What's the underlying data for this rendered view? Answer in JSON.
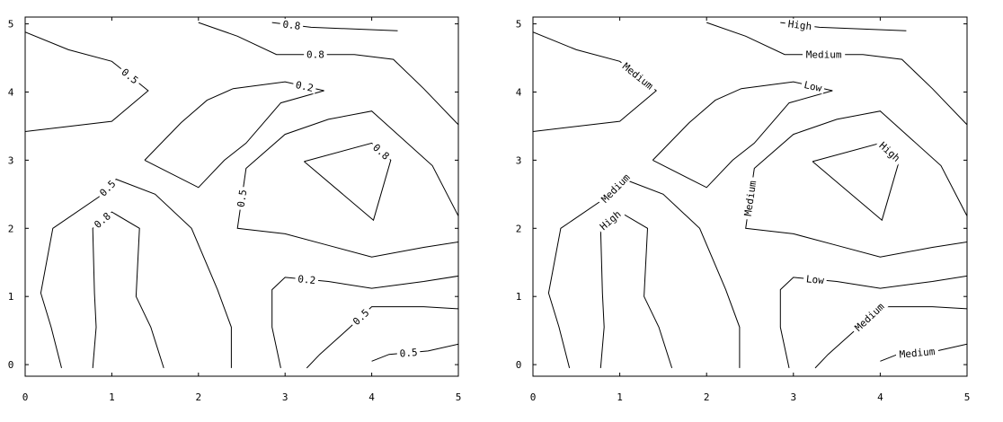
{
  "chart_data": [
    {
      "type": "contour",
      "xlim": [
        0,
        5
      ],
      "ylim": [
        0,
        5
      ],
      "x_ticks": [
        "0",
        "1",
        "2",
        "3",
        "4",
        "5"
      ],
      "y_ticks": [
        "0",
        "1",
        "2",
        "3",
        "4",
        "5"
      ],
      "contours": [
        {
          "level": "0.5",
          "points": [
            [
              0,
              4.88
            ],
            [
              0.5,
              4.62
            ],
            [
              1.0,
              4.45
            ],
            [
              1.42,
              4.02
            ],
            [
              1.0,
              3.57
            ],
            [
              0,
              3.42
            ]
          ]
        },
        {
          "level": "0.8",
          "points": [
            [
              2.85,
              5.02
            ],
            [
              3.3,
              4.95
            ],
            [
              4.3,
              4.9
            ]
          ]
        },
        {
          "level": "0.8",
          "points": [
            [
              2.0,
              5.02
            ],
            [
              2.45,
              4.82
            ],
            [
              2.9,
              4.55
            ],
            [
              3.8,
              4.55
            ],
            [
              4.25,
              4.48
            ],
            [
              4.6,
              4.05
            ],
            [
              5.0,
              3.52
            ]
          ]
        },
        {
          "level": "0.2",
          "points": [
            [
              1.38,
              3.0
            ],
            [
              1.8,
              3.55
            ],
            [
              2.1,
              3.88
            ],
            [
              2.4,
              4.05
            ],
            [
              3.0,
              4.15
            ],
            [
              3.45,
              4.02
            ],
            [
              2.95,
              3.84
            ],
            [
              2.55,
              3.25
            ],
            [
              2.3,
              3.0
            ],
            [
              2.0,
              2.6
            ],
            [
              1.38,
              3.0
            ]
          ]
        },
        {
          "level": "0.5",
          "points": [
            [
              5.0,
              2.18
            ],
            [
              4.7,
              2.92
            ],
            [
              4.0,
              3.72
            ],
            [
              3.5,
              3.6
            ],
            [
              3.0,
              3.38
            ],
            [
              2.55,
              2.88
            ],
            [
              2.45,
              2.0
            ],
            [
              3.0,
              1.92
            ],
            [
              3.5,
              1.75
            ],
            [
              4.0,
              1.58
            ],
            [
              4.6,
              1.72
            ],
            [
              5.0,
              1.8
            ]
          ]
        },
        {
          "level": "0.8",
          "points": [
            [
              3.22,
              2.98
            ],
            [
              4.0,
              3.25
            ],
            [
              4.22,
              3.0
            ],
            [
              4.02,
              2.12
            ],
            [
              3.22,
              2.98
            ]
          ]
        },
        {
          "level": "0.5",
          "points": [
            [
              0.42,
              -0.05
            ],
            [
              0.3,
              0.55
            ],
            [
              0.18,
              1.05
            ],
            [
              0.32,
              2.0
            ],
            [
              0.85,
              2.46
            ],
            [
              1.05,
              2.72
            ],
            [
              1.5,
              2.5
            ],
            [
              1.92,
              2.0
            ],
            [
              2.22,
              1.1
            ],
            [
              2.38,
              0.55
            ],
            [
              2.38,
              -0.05
            ]
          ]
        },
        {
          "level": "0.8",
          "points": [
            [
              0.78,
              -0.05
            ],
            [
              0.82,
              0.55
            ],
            [
              0.8,
              1.05
            ],
            [
              0.78,
              2.0
            ],
            [
              1.0,
              2.24
            ],
            [
              1.32,
              2.0
            ],
            [
              1.28,
              1.0
            ],
            [
              1.45,
              0.55
            ],
            [
              1.6,
              -0.05
            ]
          ]
        },
        {
          "level": "0.2",
          "points": [
            [
              5.0,
              1.3
            ],
            [
              4.6,
              1.22
            ],
            [
              4.0,
              1.12
            ],
            [
              3.5,
              1.22
            ],
            [
              3.0,
              1.28
            ],
            [
              2.85,
              1.1
            ],
            [
              2.85,
              0.55
            ],
            [
              2.95,
              -0.05
            ]
          ]
        },
        {
          "level": "0.5",
          "points": [
            [
              5.0,
              0.82
            ],
            [
              4.6,
              0.85
            ],
            [
              4.0,
              0.85
            ],
            [
              3.75,
              0.55
            ],
            [
              3.4,
              0.15
            ],
            [
              3.25,
              -0.05
            ]
          ]
        },
        {
          "level": "0.5",
          "points": [
            [
              4.0,
              0.05
            ],
            [
              4.2,
              0.15
            ],
            [
              4.65,
              0.2
            ],
            [
              5.0,
              0.3
            ]
          ]
        }
      ]
    },
    {
      "type": "contour",
      "xlim": [
        0,
        5
      ],
      "ylim": [
        0,
        5
      ],
      "x_ticks": [
        "0",
        "1",
        "2",
        "3",
        "4",
        "5"
      ],
      "y_ticks": [
        "0",
        "1",
        "2",
        "3",
        "4",
        "5"
      ],
      "contours": [
        {
          "level": "Medium",
          "points": [
            [
              0,
              4.88
            ],
            [
              0.5,
              4.62
            ],
            [
              1.0,
              4.45
            ],
            [
              1.42,
              4.02
            ],
            [
              1.0,
              3.57
            ],
            [
              0,
              3.42
            ]
          ]
        },
        {
          "level": "High",
          "points": [
            [
              2.85,
              5.02
            ],
            [
              3.3,
              4.95
            ],
            [
              4.3,
              4.9
            ]
          ]
        },
        {
          "level": "Medium",
          "points": [
            [
              2.0,
              5.02
            ],
            [
              2.45,
              4.82
            ],
            [
              2.9,
              4.55
            ],
            [
              3.8,
              4.55
            ],
            [
              4.25,
              4.48
            ],
            [
              4.6,
              4.05
            ],
            [
              5.0,
              3.52
            ]
          ]
        },
        {
          "level": "Low",
          "points": [
            [
              1.38,
              3.0
            ],
            [
              1.8,
              3.55
            ],
            [
              2.1,
              3.88
            ],
            [
              2.4,
              4.05
            ],
            [
              3.0,
              4.15
            ],
            [
              3.45,
              4.02
            ],
            [
              2.95,
              3.84
            ],
            [
              2.55,
              3.25
            ],
            [
              2.3,
              3.0
            ],
            [
              2.0,
              2.6
            ],
            [
              1.38,
              3.0
            ]
          ]
        },
        {
          "level": "Medium",
          "points": [
            [
              5.0,
              2.18
            ],
            [
              4.7,
              2.92
            ],
            [
              4.0,
              3.72
            ],
            [
              3.5,
              3.6
            ],
            [
              3.0,
              3.38
            ],
            [
              2.55,
              2.88
            ],
            [
              2.45,
              2.0
            ],
            [
              3.0,
              1.92
            ],
            [
              3.5,
              1.75
            ],
            [
              4.0,
              1.58
            ],
            [
              4.6,
              1.72
            ],
            [
              5.0,
              1.8
            ]
          ]
        },
        {
          "level": "High",
          "points": [
            [
              3.22,
              2.98
            ],
            [
              4.0,
              3.25
            ],
            [
              4.22,
              3.0
            ],
            [
              4.02,
              2.12
            ],
            [
              3.22,
              2.98
            ]
          ]
        },
        {
          "level": "Medium",
          "points": [
            [
              0.42,
              -0.05
            ],
            [
              0.3,
              0.55
            ],
            [
              0.18,
              1.05
            ],
            [
              0.32,
              2.0
            ],
            [
              0.85,
              2.46
            ],
            [
              1.05,
              2.72
            ],
            [
              1.5,
              2.5
            ],
            [
              1.92,
              2.0
            ],
            [
              2.22,
              1.1
            ],
            [
              2.38,
              0.55
            ],
            [
              2.38,
              -0.05
            ]
          ]
        },
        {
          "level": "High",
          "points": [
            [
              0.78,
              -0.05
            ],
            [
              0.82,
              0.55
            ],
            [
              0.8,
              1.05
            ],
            [
              0.78,
              2.0
            ],
            [
              1.0,
              2.24
            ],
            [
              1.32,
              2.0
            ],
            [
              1.28,
              1.0
            ],
            [
              1.45,
              0.55
            ],
            [
              1.6,
              -0.05
            ]
          ]
        },
        {
          "level": "Low",
          "points": [
            [
              5.0,
              1.3
            ],
            [
              4.6,
              1.22
            ],
            [
              4.0,
              1.12
            ],
            [
              3.5,
              1.22
            ],
            [
              3.0,
              1.28
            ],
            [
              2.85,
              1.1
            ],
            [
              2.85,
              0.55
            ],
            [
              2.95,
              -0.05
            ]
          ]
        },
        {
          "level": "Medium",
          "points": [
            [
              5.0,
              0.82
            ],
            [
              4.6,
              0.85
            ],
            [
              4.0,
              0.85
            ],
            [
              3.75,
              0.55
            ],
            [
              3.4,
              0.15
            ],
            [
              3.25,
              -0.05
            ]
          ]
        },
        {
          "level": "Medium",
          "points": [
            [
              4.0,
              0.05
            ],
            [
              4.2,
              0.15
            ],
            [
              4.65,
              0.2
            ],
            [
              5.0,
              0.3
            ]
          ]
        }
      ],
      "label_placement": "inline"
    }
  ]
}
